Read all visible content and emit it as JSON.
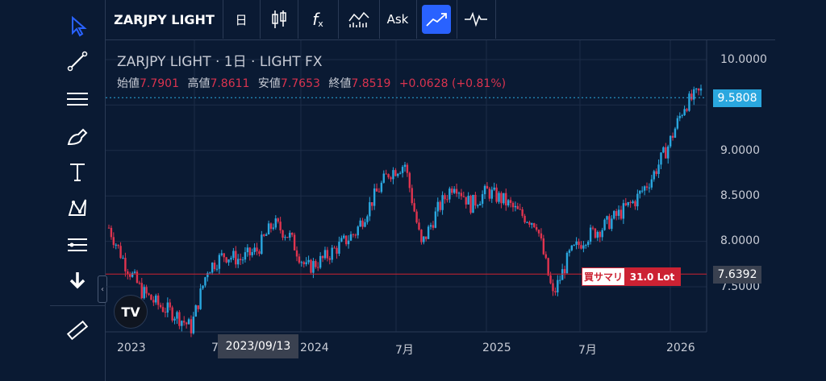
{
  "toolbar": {
    "symbol": "ZARJPY LIGHT",
    "interval": "日",
    "chart_type_icon": "candles-icon",
    "indicator_icon": "fx-icon",
    "compare_icon": "compare-icon",
    "price_source": "Ask",
    "trend_icon": "trend-icon",
    "replay_icon": "replay-icon"
  },
  "left_tools": [
    "cursor-icon",
    "trendline-icon",
    "fib-icon",
    "brush-icon",
    "text-icon",
    "pattern-icon",
    "forecast-icon",
    "arrow-down-icon",
    "ruler-icon"
  ],
  "legend": {
    "title": "ZARJPY LIGHT · 1日 · LIGHT FX",
    "open_label": "始値",
    "open": "7.7901",
    "high_label": "高値",
    "high": "7.8611",
    "low_label": "安値",
    "low": "7.7653",
    "close_label": "終値",
    "close": "7.8519",
    "change": "+0.0628 (+0.81%)"
  },
  "axis": {
    "y_ticks": [
      "10.0000",
      "9.0000",
      "8.5000",
      "8.0000",
      "7.5000"
    ],
    "x_ticks": [
      "2023",
      "7",
      "2024",
      "7月",
      "2025",
      "7月",
      "2026"
    ],
    "current_price": "9.5808",
    "position_price": "7.6392",
    "cursor_date": "2023/09/13"
  },
  "position": {
    "side": "買サマリ",
    "lots": "31.0 Lot"
  },
  "chart_data": {
    "type": "line",
    "x": [
      "2023-01",
      "2023-02",
      "2023-03",
      "2023-04",
      "2023-05",
      "2023-06",
      "2023-07",
      "2023-08",
      "2023-09",
      "2023-10",
      "2023-11",
      "2023-12",
      "2024-01",
      "2024-02",
      "2024-03",
      "2024-04",
      "2024-05",
      "2024-06",
      "2024-07",
      "2024-08",
      "2024-09",
      "2024-10",
      "2024-11",
      "2024-12",
      "2025-01",
      "2025-02",
      "2025-03",
      "2025-04",
      "2025-05",
      "2025-06",
      "2025-07",
      "2025-08",
      "2025-09",
      "2025-10",
      "2025-11",
      "2025-12",
      "2026-01"
    ],
    "y": [
      8.15,
      7.75,
      7.45,
      7.3,
      7.2,
      7.05,
      7.7,
      7.85,
      7.8,
      7.9,
      8.2,
      8.05,
      7.7,
      7.8,
      7.95,
      8.1,
      8.45,
      8.75,
      8.85,
      7.95,
      8.35,
      8.65,
      8.4,
      8.55,
      8.45,
      8.3,
      8.2,
      7.4,
      7.85,
      8.05,
      8.15,
      8.3,
      8.45,
      8.7,
      9.05,
      9.5,
      9.65
    ],
    "ylim": [
      7.0,
      10.2
    ],
    "colors": {
      "up": "#2aa7df",
      "down": "#e0344f"
    }
  }
}
